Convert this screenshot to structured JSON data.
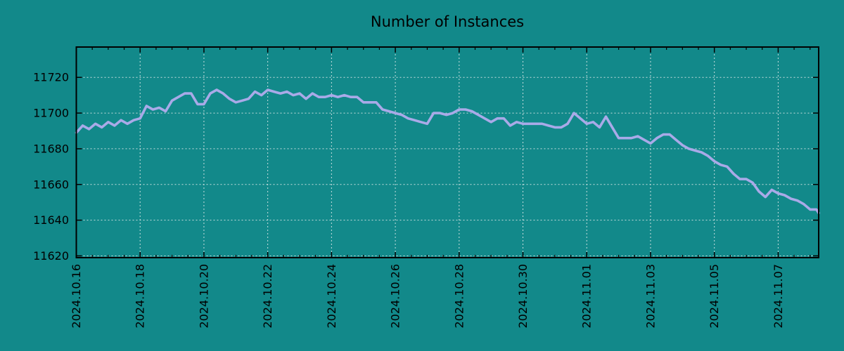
{
  "chart_data": {
    "type": "line",
    "title": "Number of Instances",
    "xlabel": "",
    "ylabel": "",
    "legend": "none",
    "grid": true,
    "grid_style": "dashed",
    "x_tick_labels": [
      "2024.10.16",
      "2024.10.18",
      "2024.10.20",
      "2024.10.22",
      "2024.10.24",
      "2024.10.26",
      "2024.10.28",
      "2024.10.30",
      "2024.11.01",
      "2024.11.03",
      "2024.11.05",
      "2024.11.07"
    ],
    "x_days_per_major_tick": 2,
    "x_minor_tick_days": 0.5,
    "x_total_days": 23.27,
    "y_ticks": [
      11620,
      11640,
      11660,
      11680,
      11700,
      11720
    ],
    "ylim": [
      11619,
      11737
    ],
    "sample_step_days": 0.2,
    "series": [
      {
        "name": "instances",
        "values": [
          11689,
          11693,
          11691,
          11694,
          11692,
          11695,
          11693,
          11696,
          11694,
          11696,
          11697,
          11704,
          11702,
          11703,
          11701,
          11707,
          11709,
          11711,
          11711,
          11705,
          11705,
          11711,
          11713,
          11711,
          11708,
          11706,
          11707,
          11708,
          11712,
          11710,
          11713,
          11712,
          11711,
          11712,
          11710,
          11711,
          11708,
          11711,
          11709,
          11709,
          11710,
          11709,
          11710,
          11709,
          11709,
          11706,
          11706,
          11706,
          11702,
          11701,
          11700,
          11699,
          11697,
          11696,
          11695,
          11694,
          11700,
          11700,
          11699,
          11700,
          11702,
          11702,
          11701,
          11699,
          11697,
          11695,
          11697,
          11697,
          11693,
          11695,
          11694,
          11694,
          11694,
          11694,
          11693,
          11692,
          11692,
          11694,
          11700,
          11697,
          11694,
          11695,
          11692,
          11698,
          11692,
          11686,
          11686,
          11686,
          11687,
          11685,
          11683,
          11686,
          11688,
          11688,
          11685,
          11682,
          11680,
          11679,
          11678,
          11676,
          11673,
          11671,
          11670,
          11666,
          11663,
          11663,
          11661,
          11656,
          11653,
          11657,
          11655,
          11654,
          11652,
          11651,
          11649,
          11646,
          11646,
          11644
        ]
      }
    ],
    "colors": {
      "background": "#12898a",
      "line": "#a9aae8",
      "grid": "#dce8e8",
      "axis": "#000000",
      "text": "#000000"
    }
  }
}
